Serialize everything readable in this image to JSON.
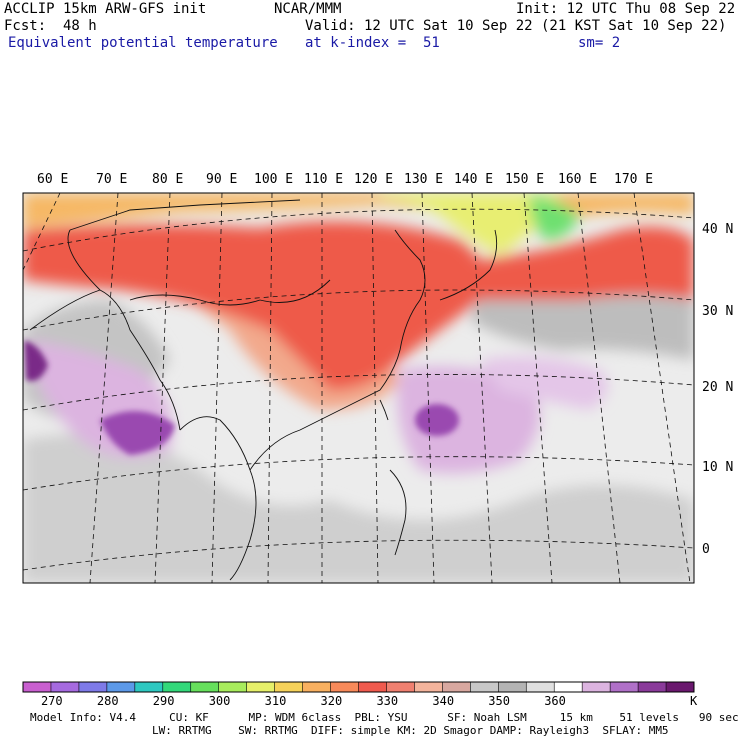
{
  "header": {
    "title": "ACCLIP 15km ARW-GFS init",
    "org": "NCAR/MMM",
    "init": "Init: 12 UTC Thu 08 Sep 22",
    "fcst": "Fcst:  48 h",
    "valid": "Valid: 12 UTC Sat 10 Sep 22 (21 KST Sat 10 Sep 22)",
    "field": "Equivalent potential temperature",
    "level": "at k-index =  51",
    "smooth": "sm= 2"
  },
  "map": {
    "lon_labels": [
      "60 E",
      "70 E",
      "80 E",
      "90 E",
      "100 E",
      "110 E",
      "120 E",
      "130 E",
      "140 E",
      "150 E",
      "160 E",
      "170 E"
    ],
    "lat_labels": [
      "40 N",
      "30 N",
      "20 N",
      "10 N",
      "0"
    ],
    "region": "East Asia / West Pacific"
  },
  "colorbar": {
    "unit": "K",
    "labels": [
      "270",
      "280",
      "290",
      "300",
      "310",
      "320",
      "330",
      "340",
      "350",
      "360"
    ],
    "colors": [
      "#c95fd0",
      "#a66ae0",
      "#7e7ae8",
      "#5c99e8",
      "#2ec8c0",
      "#33d87a",
      "#66e05c",
      "#a8ec5c",
      "#e6f06a",
      "#f6d25a",
      "#f8b060",
      "#f88a5a",
      "#f05a4e",
      "#f08070",
      "#f4b49c",
      "#d8a8a0",
      "#c8c8c8",
      "#b4b4b4",
      "#e0e0e0",
      "#ffffff",
      "#dcb4e0",
      "#b070c8",
      "#8a3a9a",
      "#6a186e"
    ]
  },
  "footer": {
    "line1": "Model Info: V4.4     CU: KF      MP: WDM 6class  PBL: YSU      SF: Noah LSM     15 km    51 levels   90 sec",
    "line2": "LW: RRTMG    SW: RRTMG  DIFF: simple KM: 2D Smagor DAMP: Rayleigh3  SFLAY: MM5"
  }
}
